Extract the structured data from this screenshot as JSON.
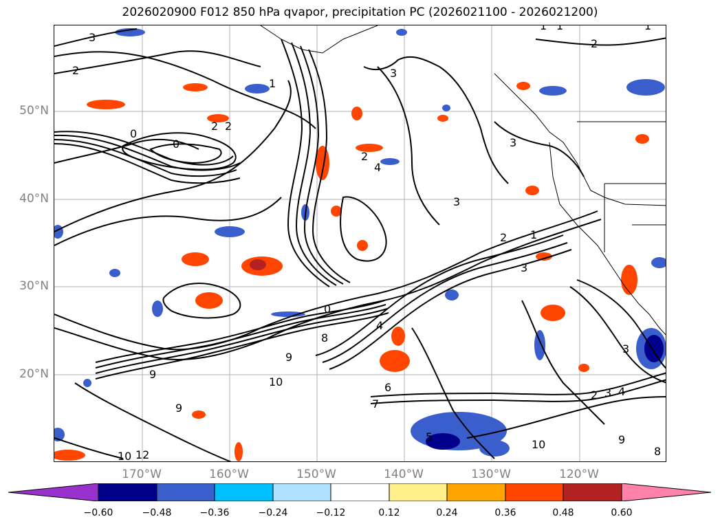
{
  "title": "2026020900 F012 850 hPa qvapor, precipitation PC (2026021100 - 2026021200)",
  "lat_labels": [
    "50°N",
    "40°N",
    "30°N",
    "20°N"
  ],
  "lon_labels": [
    "170°W",
    "160°W",
    "150°W",
    "140°W",
    "130°W",
    "120°W"
  ],
  "colorbar": {
    "ticks": [
      "−0.60",
      "−0.48",
      "−0.36",
      "−0.24",
      "−0.12",
      "0.12",
      "0.24",
      "0.36",
      "0.48",
      "0.60"
    ],
    "colors": [
      "#9932cc",
      "#00008b",
      "#3a5fcd",
      "#00bfff",
      "#b0e2ff",
      "#ffffff",
      "#fff08c",
      "#ffa500",
      "#ff4500",
      "#b22222",
      "#ff82ab"
    ]
  },
  "contour_labels": [
    "3",
    "2",
    "1",
    "0",
    "0",
    "2",
    "2",
    "3",
    "3",
    "2",
    "4",
    "3",
    "2",
    "1",
    "3",
    "4",
    "0",
    "8",
    "9",
    "10",
    "9",
    "9",
    "10",
    "12",
    "7",
    "6",
    "5",
    "2",
    "3",
    "4",
    "9",
    "8",
    "10",
    "3",
    "2",
    "1",
    "1",
    "1"
  ],
  "fill_colors": {
    "dark_blue": "#00008b",
    "mid_blue": "#3a5fcd",
    "light_blue": "#00bfff",
    "orange": "#ffa500",
    "red_orange": "#ff4500",
    "dark_red": "#b22222"
  }
}
